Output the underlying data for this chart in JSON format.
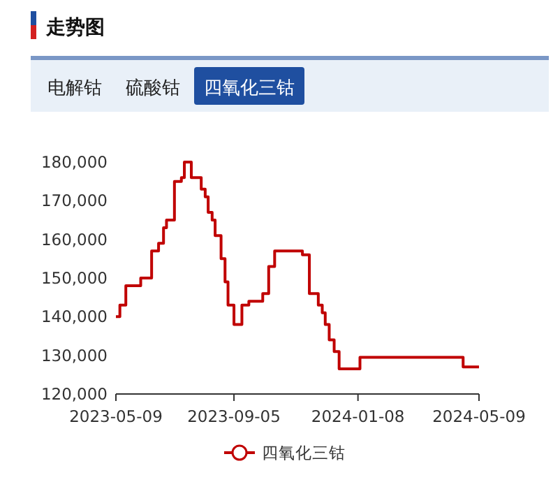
{
  "chart_data": {
    "type": "step",
    "title": "走势图",
    "annotations": [
      "电解钴",
      "硫酸钴",
      "四氧化三钴"
    ],
    "x": [
      "2023-05-09",
      "2023-05-13",
      "2023-05-19",
      "2023-06-03",
      "2023-06-14",
      "2023-06-21",
      "2023-06-26",
      "2023-06-29",
      "2023-07-07",
      "2023-07-14",
      "2023-07-17",
      "2023-07-24",
      "2023-08-03",
      "2023-08-07",
      "2023-08-10",
      "2023-08-14",
      "2023-08-17",
      "2023-08-23",
      "2023-08-27",
      "2023-08-30",
      "2023-09-05",
      "2023-09-13",
      "2023-09-20",
      "2023-10-04",
      "2023-10-10",
      "2023-10-16",
      "2023-11-13",
      "2023-11-20",
      "2023-11-29",
      "2023-12-03",
      "2023-12-06",
      "2023-12-10",
      "2023-12-15",
      "2023-12-20",
      "2024-01-10",
      "2024-04-23",
      "2024-05-09"
    ],
    "series": [
      {
        "name": "四氧化三钴",
        "color": "#c00000",
        "values": [
          140000,
          143000,
          148000,
          150000,
          157000,
          159000,
          163000,
          165000,
          175000,
          176000,
          180000,
          176000,
          173000,
          171000,
          167000,
          165000,
          161000,
          155000,
          149000,
          143000,
          138000,
          143000,
          144000,
          146000,
          153000,
          157000,
          156000,
          146000,
          143000,
          141000,
          138000,
          134000,
          131000,
          126500,
          129500,
          127000,
          127000
        ]
      }
    ],
    "xlim": [
      "2023-05-09",
      "2024-05-09"
    ],
    "xticks": [
      {
        "value": "2023-05-09",
        "label": "2023-05-09"
      },
      {
        "value": "2023-09-05",
        "label": "2023-09-05"
      },
      {
        "value": "2024-01-08",
        "label": "2024-01-08"
      },
      {
        "value": "2024-05-09",
        "label": "2024-05-09"
      }
    ],
    "ylim": [
      120000,
      180000
    ],
    "yticks": [
      {
        "value": 120000,
        "label": "120,000"
      },
      {
        "value": 130000,
        "label": "130,000"
      },
      {
        "value": 140000,
        "label": "140,000"
      },
      {
        "value": 150000,
        "label": "150,000"
      },
      {
        "value": 160000,
        "label": "160,000"
      },
      {
        "value": 170000,
        "label": "170,000"
      },
      {
        "value": 180000,
        "label": "180,000"
      }
    ],
    "legend": "bottom",
    "marker": "none",
    "line_style": "solid",
    "grid": false
  }
}
